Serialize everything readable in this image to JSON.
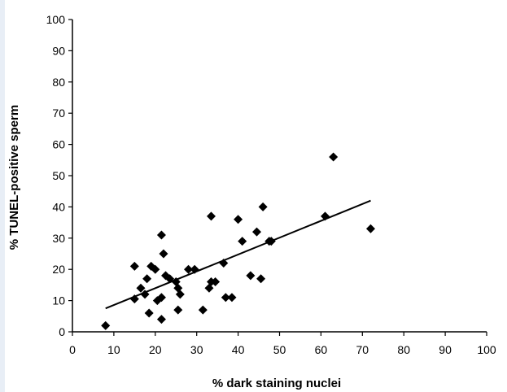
{
  "chart_data": {
    "type": "scatter",
    "title": "",
    "xlabel": "% dark staining nuclei",
    "ylabel": "% TUNEL-positive sperm",
    "xlim": [
      0,
      100
    ],
    "ylim": [
      0,
      100
    ],
    "xticks": [
      0,
      10,
      20,
      30,
      40,
      50,
      60,
      70,
      80,
      90,
      100
    ],
    "yticks": [
      0,
      10,
      20,
      30,
      40,
      50,
      60,
      70,
      80,
      90,
      100
    ],
    "grid": false,
    "legend": "none",
    "marker": "diamond",
    "marker_color": "#000000",
    "points": [
      [
        8,
        2
      ],
      [
        15,
        21
      ],
      [
        15,
        10.5
      ],
      [
        16.5,
        14
      ],
      [
        17.5,
        12
      ],
      [
        18,
        17
      ],
      [
        18.5,
        6
      ],
      [
        19,
        21
      ],
      [
        20,
        20
      ],
      [
        20.5,
        10
      ],
      [
        21.5,
        11
      ],
      [
        21.5,
        4
      ],
      [
        21.5,
        31
      ],
      [
        22,
        25
      ],
      [
        22.5,
        18
      ],
      [
        23.5,
        17
      ],
      [
        25,
        16
      ],
      [
        25.5,
        14
      ],
      [
        26,
        12
      ],
      [
        25.5,
        7
      ],
      [
        28,
        20
      ],
      [
        29.5,
        20
      ],
      [
        31.5,
        7
      ],
      [
        33,
        14
      ],
      [
        33.5,
        37
      ],
      [
        33.5,
        16
      ],
      [
        34.5,
        16
      ],
      [
        36.5,
        22
      ],
      [
        37,
        11
      ],
      [
        38.5,
        11
      ],
      [
        40,
        36
      ],
      [
        41,
        29
      ],
      [
        43,
        18
      ],
      [
        44.5,
        32
      ],
      [
        45.5,
        17
      ],
      [
        46,
        40
      ],
      [
        47.5,
        29
      ],
      [
        48,
        29
      ],
      [
        61,
        37
      ],
      [
        63,
        56
      ],
      [
        72,
        33
      ]
    ],
    "trendline": {
      "x": [
        8,
        72
      ],
      "y": [
        7.5,
        42
      ]
    }
  }
}
